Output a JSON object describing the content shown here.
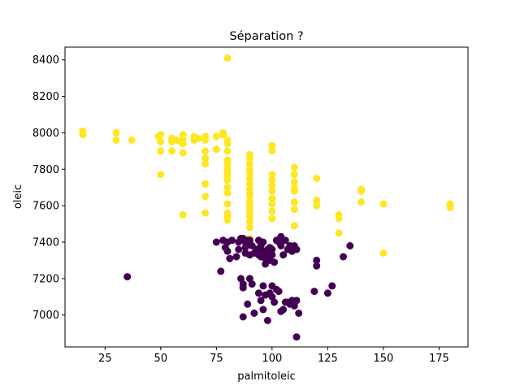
{
  "chart_data": {
    "type": "scatter",
    "title": "Séparation ?",
    "xlabel": "palmitoleic",
    "ylabel": "oleic",
    "xlim": [
      7,
      188
    ],
    "ylim": [
      6825,
      8470
    ],
    "xticks": [
      25,
      50,
      75,
      100,
      125,
      150,
      175
    ],
    "yticks": [
      7000,
      7200,
      7400,
      7600,
      7800,
      8000,
      8200,
      8400
    ],
    "grid": false,
    "colors": {
      "yellow": "#fde725",
      "purple": "#440154"
    },
    "series": [
      {
        "name": "yellow",
        "points": [
          [
            15,
            8010
          ],
          [
            15,
            7990
          ],
          [
            30,
            8000
          ],
          [
            30,
            7960
          ],
          [
            37,
            7960
          ],
          [
            49,
            7980
          ],
          [
            50,
            7990
          ],
          [
            50,
            7950
          ],
          [
            50,
            7900
          ],
          [
            50,
            7770
          ],
          [
            55,
            7970
          ],
          [
            55,
            7950
          ],
          [
            55,
            7900
          ],
          [
            57,
            7960
          ],
          [
            59,
            7950
          ],
          [
            60,
            7990
          ],
          [
            60,
            7960
          ],
          [
            60,
            7940
          ],
          [
            60,
            7890
          ],
          [
            60,
            7550
          ],
          [
            65,
            7980
          ],
          [
            65,
            7960
          ],
          [
            67,
            7970
          ],
          [
            70,
            7980
          ],
          [
            70,
            7960
          ],
          [
            70,
            7900
          ],
          [
            70,
            7860
          ],
          [
            70,
            7830
          ],
          [
            70,
            7720
          ],
          [
            70,
            7650
          ],
          [
            70,
            7560
          ],
          [
            75,
            7980
          ],
          [
            75,
            7910
          ],
          [
            78,
            8000
          ],
          [
            78,
            7990
          ],
          [
            80,
            8410
          ],
          [
            80,
            7960
          ],
          [
            80,
            7940
          ],
          [
            80,
            7900
          ],
          [
            80,
            7850
          ],
          [
            80,
            7830
          ],
          [
            80,
            7800
          ],
          [
            80,
            7780
          ],
          [
            80,
            7760
          ],
          [
            80,
            7740
          ],
          [
            80,
            7700
          ],
          [
            80,
            7670
          ],
          [
            80,
            7610
          ],
          [
            80,
            7560
          ],
          [
            80,
            7540
          ],
          [
            80,
            7520
          ],
          [
            90,
            7880
          ],
          [
            90,
            7860
          ],
          [
            90,
            7830
          ],
          [
            90,
            7800
          ],
          [
            90,
            7780
          ],
          [
            90,
            7750
          ],
          [
            90,
            7720
          ],
          [
            90,
            7690
          ],
          [
            90,
            7670
          ],
          [
            90,
            7650
          ],
          [
            90,
            7620
          ],
          [
            90,
            7600
          ],
          [
            90,
            7580
          ],
          [
            90,
            7560
          ],
          [
            90,
            7540
          ],
          [
            90,
            7510
          ],
          [
            90,
            7480
          ],
          [
            90,
            7420
          ],
          [
            100,
            7930
          ],
          [
            100,
            7900
          ],
          [
            100,
            7770
          ],
          [
            100,
            7740
          ],
          [
            100,
            7710
          ],
          [
            100,
            7680
          ],
          [
            100,
            7640
          ],
          [
            100,
            7610
          ],
          [
            100,
            7570
          ],
          [
            100,
            7530
          ],
          [
            110,
            7810
          ],
          [
            110,
            7770
          ],
          [
            110,
            7730
          ],
          [
            110,
            7700
          ],
          [
            110,
            7680
          ],
          [
            110,
            7620
          ],
          [
            110,
            7580
          ],
          [
            110,
            7490
          ],
          [
            120,
            7750
          ],
          [
            120,
            7630
          ],
          [
            120,
            7600
          ],
          [
            130,
            7550
          ],
          [
            130,
            7530
          ],
          [
            130,
            7450
          ],
          [
            140,
            7690
          ],
          [
            140,
            7680
          ],
          [
            140,
            7620
          ],
          [
            150,
            7610
          ],
          [
            150,
            7340
          ],
          [
            180,
            7610
          ],
          [
            180,
            7590
          ]
        ]
      },
      {
        "name": "purple",
        "points": [
          [
            35,
            7210
          ],
          [
            75,
            7400
          ],
          [
            77,
            7240
          ],
          [
            78,
            7410
          ],
          [
            79,
            7370
          ],
          [
            80,
            7400
          ],
          [
            80,
            7350
          ],
          [
            81,
            7310
          ],
          [
            82,
            7410
          ],
          [
            84,
            7320
          ],
          [
            85,
            7400
          ],
          [
            85,
            7360
          ],
          [
            86,
            7420
          ],
          [
            87,
            7420
          ],
          [
            88,
            7400
          ],
          [
            88,
            7370
          ],
          [
            88,
            7340
          ],
          [
            89,
            7410
          ],
          [
            89,
            7390
          ],
          [
            90,
            7410
          ],
          [
            90,
            7330
          ],
          [
            91,
            7380
          ],
          [
            92,
            7340
          ],
          [
            93,
            7360
          ],
          [
            94,
            7410
          ],
          [
            94,
            7330
          ],
          [
            95,
            7380
          ],
          [
            95,
            7320
          ],
          [
            96,
            7400
          ],
          [
            96,
            7350
          ],
          [
            97,
            7310
          ],
          [
            97,
            7280
          ],
          [
            98,
            7360
          ],
          [
            98,
            7330
          ],
          [
            99,
            7370
          ],
          [
            99,
            7300
          ],
          [
            100,
            7360
          ],
          [
            100,
            7330
          ],
          [
            101,
            7290
          ],
          [
            102,
            7410
          ],
          [
            103,
            7400
          ],
          [
            104,
            7430
          ],
          [
            104,
            7380
          ],
          [
            105,
            7330
          ],
          [
            106,
            7410
          ],
          [
            107,
            7360
          ],
          [
            108,
            7380
          ],
          [
            109,
            7350
          ],
          [
            110,
            7380
          ],
          [
            111,
            7360
          ],
          [
            86,
            7200
          ],
          [
            87,
            7170
          ],
          [
            87,
            7150
          ],
          [
            89,
            7060
          ],
          [
            90,
            7200
          ],
          [
            91,
            7170
          ],
          [
            94,
            7120
          ],
          [
            95,
            7080
          ],
          [
            96,
            7160
          ],
          [
            96,
            7030
          ],
          [
            97,
            7110
          ],
          [
            98,
            6970
          ],
          [
            99,
            7120
          ],
          [
            100,
            7160
          ],
          [
            100,
            7100
          ],
          [
            101,
            7070
          ],
          [
            102,
            7140
          ],
          [
            103,
            7130
          ],
          [
            104,
            7020
          ],
          [
            105,
            7030
          ],
          [
            106,
            7070
          ],
          [
            107,
            7070
          ],
          [
            108,
            7060
          ],
          [
            109,
            7080
          ],
          [
            110,
            7070
          ],
          [
            110,
            7050
          ],
          [
            111,
            7080
          ],
          [
            112,
            7010
          ],
          [
            111,
            6880
          ],
          [
            92,
            7010
          ],
          [
            87,
            6990
          ],
          [
            119,
            7130
          ],
          [
            120,
            7300
          ],
          [
            120,
            7270
          ],
          [
            125,
            7120
          ],
          [
            127,
            7160
          ],
          [
            132,
            7320
          ],
          [
            135,
            7380
          ]
        ]
      }
    ]
  }
}
